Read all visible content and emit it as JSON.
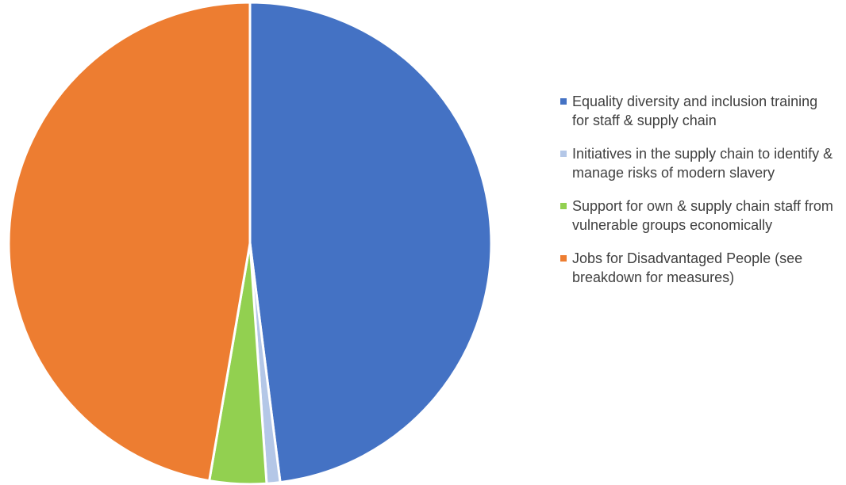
{
  "chart_data": {
    "type": "pie",
    "title": "",
    "start_angle_deg": 0,
    "direction": "clockwise",
    "legend_position": "right",
    "slices": [
      {
        "label": "Equality diversity and inclusion training for staff & supply chain",
        "value": 48.0,
        "color": "#4472C4"
      },
      {
        "label": "Initiatives in the supply chain to identify & manage risks of modern slavery",
        "value": 0.9,
        "color": "#B4C7E7"
      },
      {
        "label": "Support for own & supply chain staff from vulnerable groups economically",
        "value": 3.8,
        "color": "#92D050"
      },
      {
        "label": "Jobs for Disadvantaged People (see breakdown for measures)",
        "value": 47.3,
        "color": "#ED7D31"
      }
    ]
  }
}
